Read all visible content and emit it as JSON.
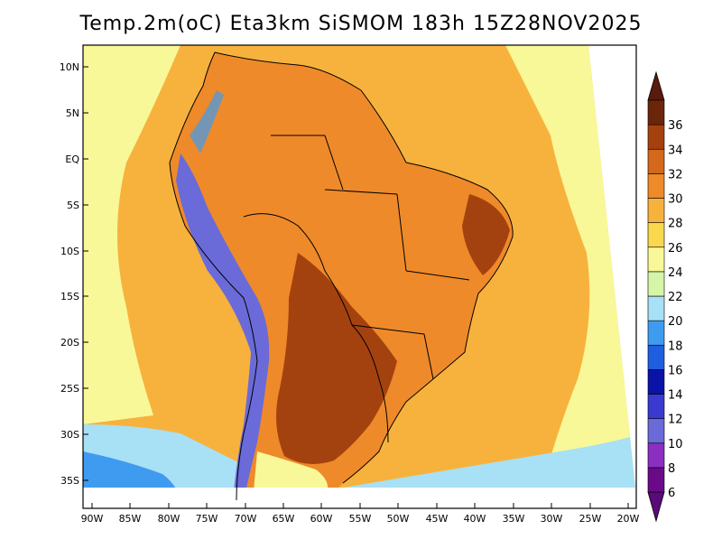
{
  "title": "Temp.2m(oC) Eta3km SiSMOM 183h 15Z28NOV2025",
  "lat_labels": [
    "10N",
    "5N",
    "EQ",
    "5S",
    "10S",
    "15S",
    "20S",
    "25S",
    "30S",
    "35S"
  ],
  "lon_labels": [
    "90W",
    "85W",
    "80W",
    "75W",
    "70W",
    "65W",
    "60W",
    "55W",
    "50W",
    "45W",
    "40W",
    "35W",
    "30W",
    "25W",
    "20W"
  ],
  "colorbar": {
    "levels": [
      "6",
      "8",
      "10",
      "12",
      "14",
      "16",
      "18",
      "20",
      "22",
      "24",
      "26",
      "28",
      "30",
      "32",
      "34",
      "36"
    ],
    "colors": [
      "#6a0a8a",
      "#8a2fc0",
      "#6a6ad8",
      "#3a3ad0",
      "#0a12a8",
      "#1e5ee0",
      "#3f9bf0",
      "#a8e0f6",
      "#d6f5a6",
      "#f8f898",
      "#f9d84d",
      "#f7b23d",
      "#ee8a2a",
      "#d4681b",
      "#a4420f",
      "#6b250a"
    ],
    "over_color": "#5a1a0c",
    "under_color": "#5a0a7a"
  },
  "colors": {
    "ocean_warm": "#f7b23d",
    "ocean_mild": "#f8f898",
    "ocean_cool": "#a8e0f6",
    "ocean_cold": "#3f9bf0",
    "land_hot": "#ee8a2a",
    "land_very_hot": "#a4420f",
    "andes_cold": "#6a6ad8"
  }
}
